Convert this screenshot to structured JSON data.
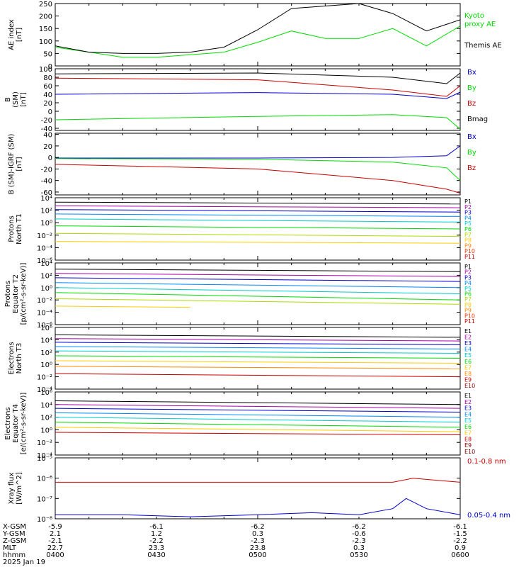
{
  "chart_data": [
    {
      "type": "line",
      "ylabel": [
        "AE index",
        "[nT]"
      ],
      "ylim": [
        0,
        250
      ],
      "yticks": [
        0,
        50,
        100,
        150,
        200,
        250
      ],
      "yticklabels": [
        "0",
        "50",
        "100",
        "150",
        "200",
        "250"
      ],
      "series": [
        {
          "name": "Kyoto proxy AE",
          "label_lines": [
            "Kyoto",
            "proxy AE"
          ],
          "color": "#00dd00",
          "x": [
            0,
            5,
            10,
            15,
            20,
            25,
            30,
            35,
            40,
            45,
            50,
            55,
            60
          ],
          "y": [
            75,
            55,
            35,
            35,
            45,
            55,
            95,
            140,
            110,
            110,
            150,
            80,
            160
          ]
        },
        {
          "name": "Themis AE",
          "label_lines": [
            "Themis AE"
          ],
          "color": "#000000",
          "x": [
            0,
            5,
            10,
            15,
            20,
            25,
            30,
            35,
            40,
            45,
            50,
            55,
            60
          ],
          "y": [
            80,
            55,
            50,
            50,
            55,
            75,
            145,
            230,
            240,
            250,
            210,
            140,
            185
          ]
        }
      ]
    },
    {
      "type": "line",
      "ylabel": [
        "B",
        "(SM)",
        "[nT]"
      ],
      "ylim": [
        -45,
        100
      ],
      "yticks": [
        -40,
        -20,
        0,
        20,
        40,
        60,
        80,
        100
      ],
      "yticklabels": [
        "-40",
        "-20",
        "0",
        "20",
        "40",
        "60",
        "80",
        "100"
      ],
      "series": [
        {
          "name": "Bx",
          "color": "#0000cc",
          "x": [
            0,
            30,
            50,
            58,
            60
          ],
          "y": [
            40,
            44,
            40,
            30,
            45
          ]
        },
        {
          "name": "By",
          "color": "#00dd00",
          "x": [
            0,
            30,
            50,
            58,
            60
          ],
          "y": [
            -20,
            -12,
            -8,
            -15,
            -42
          ]
        },
        {
          "name": "Bz",
          "color": "#cc0000",
          "x": [
            0,
            30,
            50,
            58,
            60
          ],
          "y": [
            78,
            74,
            50,
            35,
            60
          ]
        },
        {
          "name": "Bmag",
          "color": "#000000",
          "x": [
            0,
            30,
            50,
            58,
            60
          ],
          "y": [
            88,
            90,
            80,
            65,
            90
          ]
        }
      ]
    },
    {
      "type": "line",
      "ylabel": [
        "B (SM)-IGRF (SM)",
        "[nT]"
      ],
      "ylim": [
        -65,
        42
      ],
      "yticks": [
        -60,
        -40,
        -20,
        0,
        20,
        40
      ],
      "yticklabels": [
        "-60",
        "-40",
        "-20",
        "0",
        "20",
        "40"
      ],
      "series": [
        {
          "name": "Bx",
          "color": "#0000cc",
          "x": [
            0,
            30,
            50,
            58,
            60
          ],
          "y": [
            -1,
            -1,
            0,
            3,
            20
          ]
        },
        {
          "name": "By",
          "color": "#00dd00",
          "x": [
            0,
            30,
            50,
            58,
            60
          ],
          "y": [
            -2,
            -3,
            -8,
            -18,
            -40
          ]
        },
        {
          "name": "Bz",
          "color": "#cc0000",
          "x": [
            0,
            30,
            50,
            58,
            60
          ],
          "y": [
            -12,
            -20,
            -40,
            -55,
            -62
          ]
        }
      ]
    },
    {
      "type": "line",
      "ylog": true,
      "ylabel": [
        "Protons",
        "North T1"
      ],
      "ylim": [
        -6,
        4
      ],
      "yticks": [
        4,
        2,
        0,
        -2,
        -4,
        -6
      ],
      "yticklabels": [
        "10⁴",
        "10²",
        "10⁰",
        "10⁻²",
        "10⁻⁴",
        "10⁻⁶"
      ],
      "series": [
        {
          "name": "P1",
          "color": "#000000",
          "x": [
            0,
            60
          ],
          "y": [
            3.3,
            3.0
          ]
        },
        {
          "name": "P2",
          "color": "#aa00aa",
          "x": [
            0,
            60
          ],
          "y": [
            2.7,
            2.4
          ]
        },
        {
          "name": "P3",
          "color": "#0000cc",
          "x": [
            0,
            60
          ],
          "y": [
            2.1,
            1.7
          ]
        },
        {
          "name": "P4",
          "color": "#0088ff",
          "x": [
            0,
            60
          ],
          "y": [
            1.4,
            1.0
          ]
        },
        {
          "name": "P5",
          "color": "#00cccc",
          "x": [
            0,
            60
          ],
          "y": [
            0.6,
            0.1
          ]
        },
        {
          "name": "P6",
          "color": "#00dd00",
          "x": [
            0,
            60
          ],
          "y": [
            -0.5,
            -1.0
          ]
        },
        {
          "name": "P7",
          "color": "#aadd00",
          "x": [
            0,
            60
          ],
          "y": [
            -1.7,
            -2.2
          ]
        },
        {
          "name": "P8",
          "color": "#ffcc00",
          "x": [
            0,
            60
          ],
          "y": [
            -3.0,
            -3.3
          ]
        },
        {
          "name": "P9",
          "color": "#ff8800",
          "x": [],
          "y": []
        },
        {
          "name": "P10",
          "color": "#ff3300",
          "x": [],
          "y": []
        },
        {
          "name": "P11",
          "color": "#cc0000",
          "x": [],
          "y": []
        }
      ]
    },
    {
      "type": "line",
      "ylog": true,
      "ylabel": [
        "Protons",
        "Equator T2",
        "[p/(cm²-s-sr-keV)]"
      ],
      "ylim": [
        -6,
        4
      ],
      "yticks": [
        4,
        2,
        0,
        -2,
        -4,
        -6
      ],
      "yticklabels": [
        "10⁴",
        "10²",
        "10⁰",
        "10⁻²",
        "10⁻⁴",
        "10⁻⁶"
      ],
      "series": [
        {
          "name": "P1",
          "color": "#000000",
          "x": [
            0,
            60
          ],
          "y": [
            3.0,
            2.6
          ]
        },
        {
          "name": "P2",
          "color": "#aa00aa",
          "x": [
            0,
            60
          ],
          "y": [
            2.3,
            1.8
          ]
        },
        {
          "name": "P3",
          "color": "#0000cc",
          "x": [
            0,
            60
          ],
          "y": [
            1.6,
            1.0
          ]
        },
        {
          "name": "P4",
          "color": "#0088ff",
          "x": [
            0,
            60
          ],
          "y": [
            0.8,
            0.0
          ]
        },
        {
          "name": "P5",
          "color": "#00cccc",
          "x": [
            0,
            60
          ],
          "y": [
            0.0,
            -1.0
          ]
        },
        {
          "name": "P6",
          "color": "#00dd00",
          "x": [
            0,
            60
          ],
          "y": [
            -0.8,
            -2.0
          ]
        },
        {
          "name": "P7",
          "color": "#aadd00",
          "x": [
            0,
            60
          ],
          "y": [
            -1.8,
            -2.7
          ]
        },
        {
          "name": "P8",
          "color": "#ffcc00",
          "x": [
            0,
            20
          ],
          "y": [
            -3.0,
            -3.2
          ]
        },
        {
          "name": "P9",
          "color": "#ff8800",
          "x": [],
          "y": []
        },
        {
          "name": "P10",
          "color": "#ff3300",
          "x": [],
          "y": []
        },
        {
          "name": "P11",
          "color": "#cc0000",
          "x": [],
          "y": []
        }
      ]
    },
    {
      "type": "line",
      "ylog": true,
      "ylabel": [
        "Electrons",
        "North T3"
      ],
      "ylim": [
        -4,
        6
      ],
      "yticks": [
        6,
        4,
        2,
        0,
        -2,
        -4
      ],
      "yticklabels": [
        "10⁶",
        "10⁴",
        "10²",
        "10⁰",
        "10⁻²",
        "10⁻⁴"
      ],
      "series": [
        {
          "name": "E1",
          "color": "#000000",
          "x": [
            0,
            60
          ],
          "y": [
            4.8,
            4.4
          ]
        },
        {
          "name": "E2",
          "color": "#aa00aa",
          "x": [
            0,
            60
          ],
          "y": [
            4.2,
            3.8
          ]
        },
        {
          "name": "E3",
          "color": "#0000cc",
          "x": [
            0,
            60
          ],
          "y": [
            3.6,
            3.2
          ]
        },
        {
          "name": "E4",
          "color": "#0088ff",
          "x": [
            0,
            60
          ],
          "y": [
            2.9,
            2.5
          ]
        },
        {
          "name": "E5",
          "color": "#00cccc",
          "x": [
            0,
            60
          ],
          "y": [
            2.2,
            1.8
          ]
        },
        {
          "name": "E6",
          "color": "#00dd00",
          "x": [
            0,
            60
          ],
          "y": [
            1.4,
            1.0
          ]
        },
        {
          "name": "E7",
          "color": "#ffcc00",
          "x": [
            0,
            60
          ],
          "y": [
            0.6,
            0.2
          ]
        },
        {
          "name": "E8",
          "color": "#ff8800",
          "x": [
            0,
            60
          ],
          "y": [
            -0.3,
            -0.7
          ]
        },
        {
          "name": "E9",
          "color": "#cc0000",
          "x": [
            0,
            60
          ],
          "y": [
            -1.5,
            -2.0
          ]
        },
        {
          "name": "E10",
          "color": "#990000",
          "x": [],
          "y": []
        }
      ]
    },
    {
      "type": "line",
      "ylog": true,
      "ylabel": [
        "Electrons",
        "Equator T4",
        "[e/(cm²-s-sr-keV)]"
      ],
      "ylim": [
        -4,
        6
      ],
      "yticks": [
        6,
        4,
        2,
        0,
        -2,
        -4
      ],
      "yticklabels": [
        "10⁶",
        "10⁴",
        "10²",
        "10⁰",
        "10⁻²",
        "10⁻⁴"
      ],
      "series": [
        {
          "name": "E1",
          "color": "#000000",
          "x": [
            0,
            60
          ],
          "y": [
            4.6,
            4.0
          ]
        },
        {
          "name": "E2",
          "color": "#aa00aa",
          "x": [
            0,
            60
          ],
          "y": [
            4.0,
            3.4
          ]
        },
        {
          "name": "E3",
          "color": "#0000cc",
          "x": [
            0,
            60
          ],
          "y": [
            3.4,
            2.8
          ]
        },
        {
          "name": "E4",
          "color": "#0088ff",
          "x": [
            0,
            60
          ],
          "y": [
            2.7,
            2.0
          ]
        },
        {
          "name": "E5",
          "color": "#00cccc",
          "x": [
            0,
            60
          ],
          "y": [
            2.0,
            1.2
          ]
        },
        {
          "name": "E6",
          "color": "#00dd00",
          "x": [
            0,
            60
          ],
          "y": [
            1.2,
            0.4
          ]
        },
        {
          "name": "E7",
          "color": "#ffcc00",
          "x": [
            0,
            60
          ],
          "y": [
            0.4,
            -0.3
          ]
        },
        {
          "name": "E8",
          "color": "#cc0000",
          "x": [
            0,
            60
          ],
          "y": [
            -0.4,
            -0.8
          ]
        },
        {
          "name": "E9",
          "color": "#990000",
          "x": [],
          "y": []
        },
        {
          "name": "E10",
          "color": "#660000",
          "x": [],
          "y": []
        }
      ]
    },
    {
      "type": "line",
      "ylog": true,
      "ylabel": [
        "Xray flux",
        "[W/m^2]"
      ],
      "ylim": [
        -8,
        -5
      ],
      "yticks": [
        -5,
        -6,
        -7,
        -8
      ],
      "yticklabels": [
        "10⁻⁵",
        "10⁻⁶",
        "10⁻⁷",
        "10⁻⁸"
      ],
      "series": [
        {
          "name": "0.1-0.8 nm",
          "color": "#cc0000",
          "x": [
            0,
            20,
            40,
            50,
            53,
            60
          ],
          "y": [
            -6.2,
            -6.2,
            -6.2,
            -6.2,
            -6.0,
            -6.2
          ]
        },
        {
          "name": "0.05-0.4 nm",
          "color": "#0000cc",
          "x": [
            0,
            10,
            20,
            30,
            38,
            45,
            50,
            52,
            55,
            60
          ],
          "y": [
            -7.8,
            -7.8,
            -7.9,
            -7.8,
            -7.7,
            -7.8,
            -7.5,
            -7.0,
            -7.5,
            -7.8
          ]
        }
      ]
    }
  ],
  "axis_footer": {
    "rows": [
      {
        "label": "X-GSM",
        "values": [
          "-5.9",
          "-6.1",
          "-6.2",
          "-6.2",
          "-6.1"
        ]
      },
      {
        "label": "Y-GSM",
        "values": [
          "2.1",
          "1.2",
          "0.3",
          "-0.6",
          "-1.5"
        ]
      },
      {
        "label": "Z-GSM",
        "values": [
          "-2.1",
          "-2.2",
          "-2.3",
          "-2.3",
          "-2.2"
        ]
      },
      {
        "label": "MLT",
        "values": [
          "22.7",
          "23.3",
          "23.8",
          "0.3",
          "0.9"
        ]
      },
      {
        "label": "hhmm",
        "values": [
          "0400",
          "0430",
          "0500",
          "0530",
          "0600"
        ]
      }
    ],
    "date": "2025 Jan 19"
  }
}
